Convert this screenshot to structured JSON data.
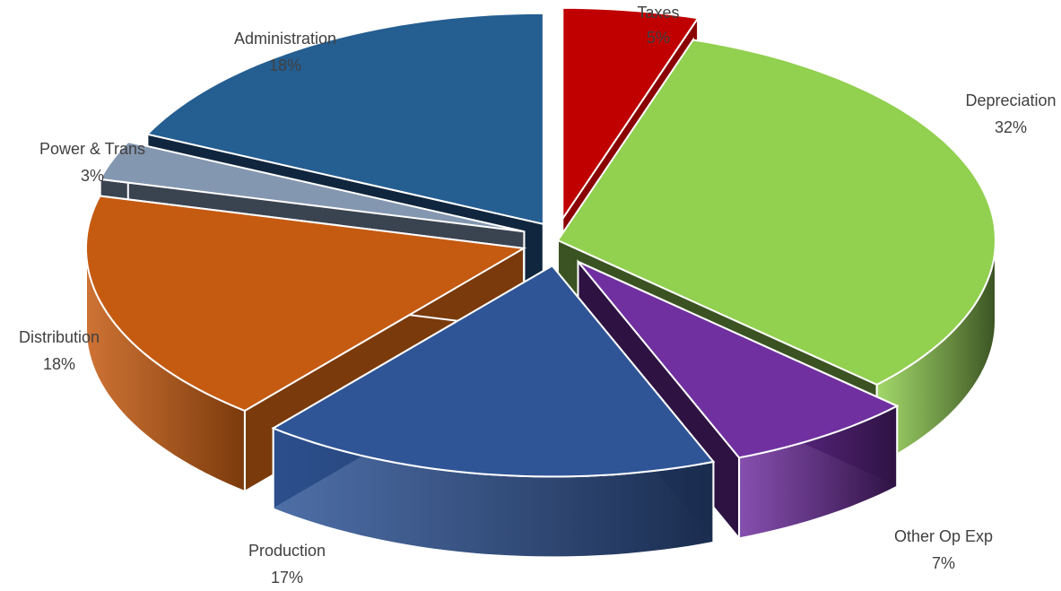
{
  "chart_data": {
    "type": "pie",
    "variant": "3d-exploded",
    "title": "",
    "slices": [
      {
        "label": "Taxes",
        "percent_label": "5%",
        "value": 5,
        "color": "#C00000",
        "side_color": "#8B0000"
      },
      {
        "label": "Depreciation",
        "percent_label": "32%",
        "value": 32,
        "color": "#92D050",
        "side_color": "#3B5323"
      },
      {
        "label": "Other Op Exp",
        "percent_label": "7%",
        "value": 7,
        "color": "#7030A0",
        "side_color": "#2E1242"
      },
      {
        "label": "Production",
        "percent_label": "17%",
        "value": 17,
        "color": "#2F5597",
        "side_color": "#1A2C4E"
      },
      {
        "label": "Distribution",
        "percent_label": "18%",
        "value": 18,
        "color": "#C55A11",
        "side_color": "#7A3A0C"
      },
      {
        "label": "Power & Trans",
        "percent_label": "3%",
        "value": 3,
        "color": "#8497B0",
        "side_color": "#3A4350"
      },
      {
        "label": "Administration",
        "percent_label": "18%",
        "value": 18,
        "color": "#255E91",
        "side_color": "#10263E"
      }
    ],
    "legend": "none"
  }
}
